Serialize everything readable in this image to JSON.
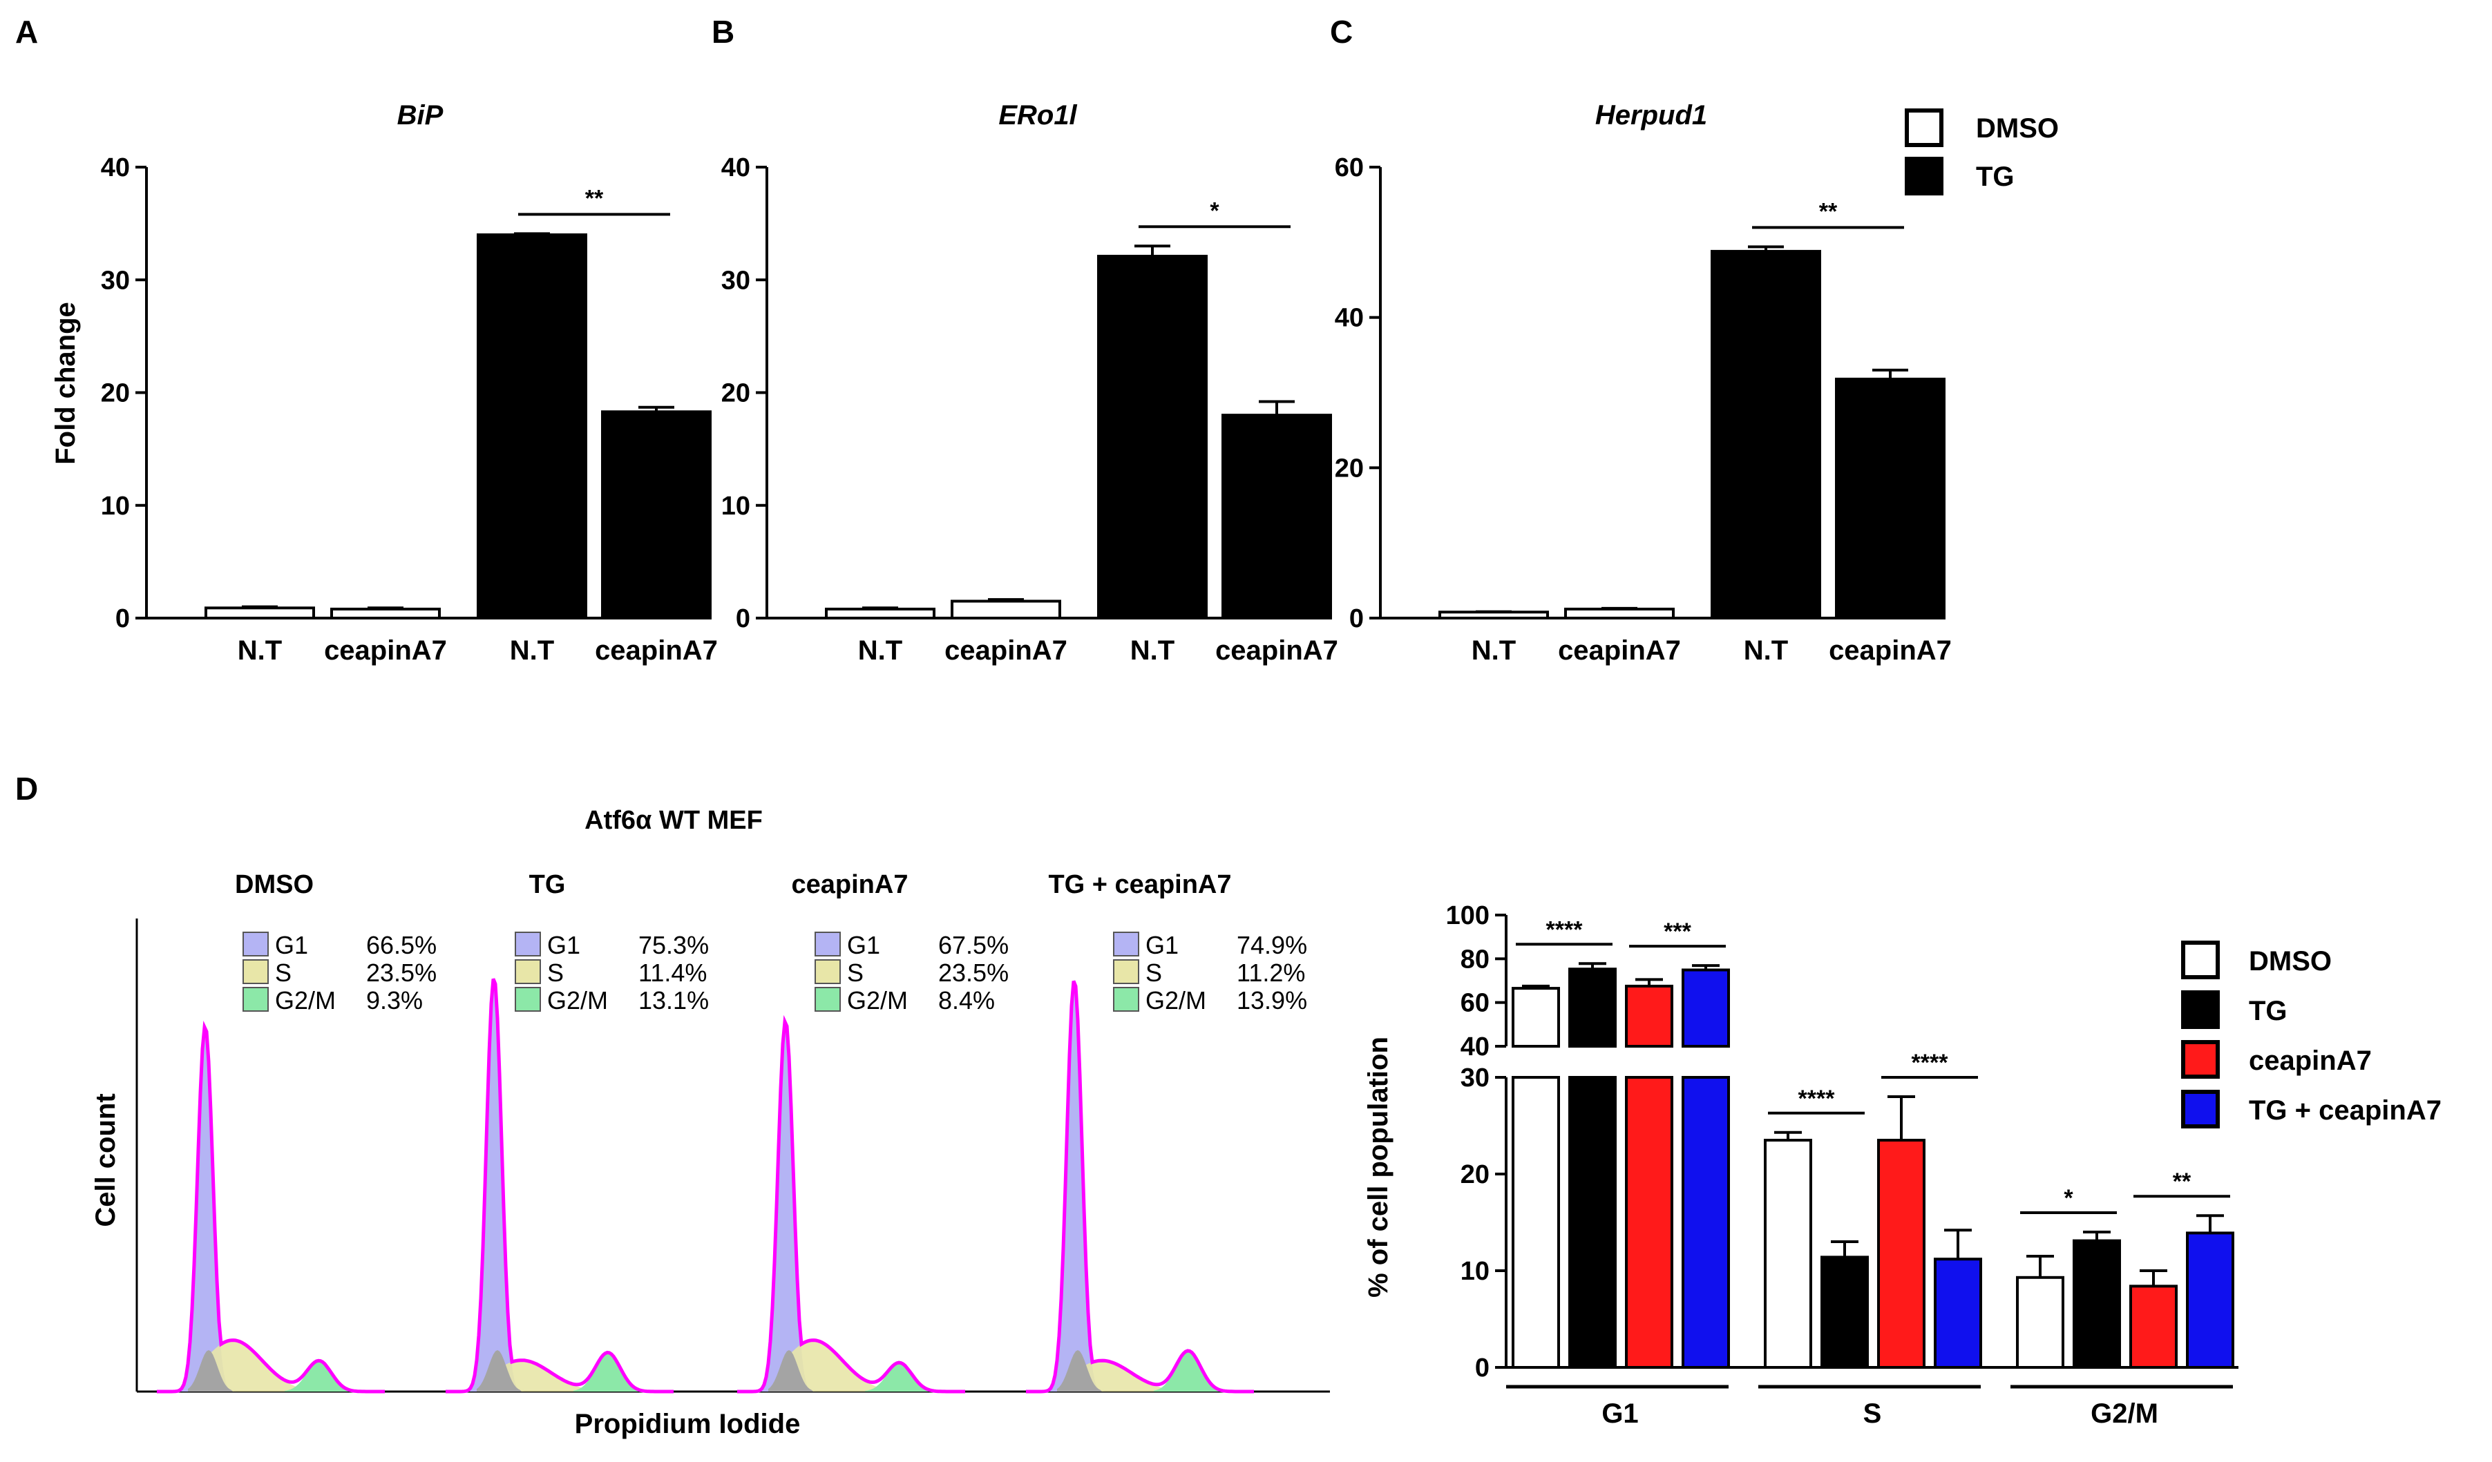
{
  "chart_data": [
    {
      "panel": "A",
      "type": "bar",
      "title": "BiP",
      "ylabel": "Fold change",
      "xlabel": "",
      "ylim": [
        0,
        40
      ],
      "yticks": [
        0,
        10,
        20,
        30,
        40
      ],
      "categories": [
        "N.T",
        "ceapinA7",
        "N.T",
        "ceapinA7"
      ],
      "values": [
        0.9,
        0.8,
        34.0,
        18.3
      ],
      "errors": [
        0.1,
        0.1,
        0.1,
        0.4
      ],
      "groups": [
        "DMSO",
        "DMSO",
        "TG",
        "TG"
      ],
      "significance": [
        {
          "from": 2,
          "to": 3,
          "label": "**"
        }
      ]
    },
    {
      "panel": "B",
      "type": "bar",
      "title": "ERo1l",
      "ylabel": "",
      "xlabel": "",
      "ylim": [
        0,
        40
      ],
      "yticks": [
        0,
        10,
        20,
        30,
        40
      ],
      "categories": [
        "N.T",
        "ceapinA7",
        "N.T",
        "ceapinA7"
      ],
      "values": [
        0.8,
        1.5,
        32.1,
        18.0
      ],
      "errors": [
        0.1,
        0.15,
        0.9,
        1.2
      ],
      "groups": [
        "DMSO",
        "DMSO",
        "TG",
        "TG"
      ],
      "significance": [
        {
          "from": 2,
          "to": 3,
          "label": "*"
        }
      ]
    },
    {
      "panel": "C",
      "type": "bar",
      "title": "Herpud1",
      "ylabel": "",
      "xlabel": "",
      "ylim": [
        0,
        60
      ],
      "yticks": [
        0,
        20,
        40,
        60
      ],
      "categories": [
        "N.T",
        "ceapinA7",
        "N.T",
        "ceapinA7"
      ],
      "values": [
        0.8,
        1.2,
        48.8,
        31.8
      ],
      "errors": [
        0.05,
        0.1,
        0.6,
        1.2
      ],
      "groups": [
        "DMSO",
        "DMSO",
        "TG",
        "TG"
      ],
      "significance": [
        {
          "from": 2,
          "to": 3,
          "label": "**"
        }
      ]
    },
    {
      "panel": "D",
      "type": "bar",
      "title": "",
      "ylabel": "% of cell population",
      "xlabel": "",
      "axis_break": {
        "lower": [
          0,
          30
        ],
        "upper": [
          40,
          100
        ]
      },
      "yticks_lower": [
        0,
        10,
        20,
        30
      ],
      "yticks_upper": [
        40,
        60,
        80,
        100
      ],
      "categories": [
        "G1",
        "S",
        "G2/M"
      ],
      "series": [
        {
          "name": "DMSO",
          "color": "#ffffff",
          "values": [
            66.5,
            23.5,
            9.3
          ],
          "errors": [
            1.0,
            0.8,
            2.2
          ]
        },
        {
          "name": "TG",
          "color": "#000000",
          "values": [
            75.3,
            11.4,
            13.1
          ],
          "errors": [
            2.5,
            1.6,
            0.9
          ]
        },
        {
          "name": "ceapinA7",
          "color": "#ff1a1a",
          "values": [
            67.5,
            23.5,
            8.4
          ],
          "errors": [
            3.0,
            4.5,
            1.6
          ]
        },
        {
          "name": "TG + ceapinA7",
          "color": "#1010ee",
          "values": [
            74.9,
            11.2,
            13.9
          ],
          "errors": [
            2.0,
            3.0,
            1.8
          ]
        }
      ],
      "significance": [
        {
          "category": 0,
          "from": 0,
          "to": 1,
          "label": "****"
        },
        {
          "category": 0,
          "from": 2,
          "to": 3,
          "label": "***"
        },
        {
          "category": 1,
          "from": 0,
          "to": 1,
          "label": "****"
        },
        {
          "category": 1,
          "from": 2,
          "to": 3,
          "label": "****"
        },
        {
          "category": 2,
          "from": 0,
          "to": 1,
          "label": "*"
        },
        {
          "category": 2,
          "from": 2,
          "to": 3,
          "label": "**"
        }
      ]
    }
  ],
  "legend_top": {
    "entries": [
      {
        "label": "DMSO",
        "color": "#ffffff"
      },
      {
        "label": "TG",
        "color": "#000000"
      }
    ]
  },
  "panel_labels": {
    "a": "A",
    "b": "B",
    "c": "C",
    "d": "D"
  },
  "histogram": {
    "title": "Atf6α WT MEF",
    "ylabel": "Cell count",
    "xlabel": "Propidium Iodide",
    "phase_colors": {
      "G1": "#b4b4f4",
      "S": "#e8e6a8",
      "G2M": "#8ce8a8",
      "overlap": "#a4a4a4",
      "fit": "#ff00ff"
    },
    "conditions": [
      {
        "name": "DMSO",
        "G1": "66.5%",
        "S": "23.5%",
        "G2M": "9.3%"
      },
      {
        "name": "TG",
        "G1": "75.3%",
        "S": "11.4%",
        "G2M": "13.1%"
      },
      {
        "name": "ceapinA7",
        "G1": "67.5%",
        "S": "23.5%",
        "G2M": "8.4%"
      },
      {
        "name": "TG + ceapinA7",
        "G1": "74.9%",
        "S": "11.2%",
        "G2M": "13.9%"
      }
    ],
    "phase_labels": {
      "G1": "G1",
      "S": "S",
      "G2M": "G2/M"
    }
  }
}
